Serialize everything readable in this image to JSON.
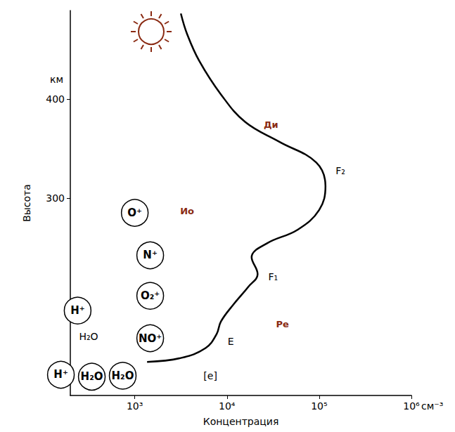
{
  "chart_data": {
    "type": "line",
    "xlabel": "Концентрация",
    "xunit": "см⁻³",
    "ylabel": "Высота",
    "yunit": "км",
    "log": "x",
    "grid": false,
    "xlim": [
      200,
      1000000
    ],
    "xticks": [
      {
        "value": 1000,
        "label": "10³"
      },
      {
        "value": 10000,
        "label": "10⁴"
      },
      {
        "value": 100000,
        "label": "10⁵"
      },
      {
        "value": 1000000,
        "label": "10⁶"
      }
    ],
    "ylim": [
      100,
      490
    ],
    "yticks": [
      300,
      400
    ],
    "series": [
      {
        "color": "#000000",
        "x": [
          1360,
          3160,
          5860,
          7700,
          8600,
          11700,
          17000,
          21500,
          18500,
          27000,
          58500,
          100000,
          117000,
          93000,
          37000,
          15800,
          8600,
          5000,
          3700,
          3160
        ],
        "values": [
          134,
          138,
          148,
          162,
          175,
          192,
          210,
          223,
          240,
          254,
          268,
          288,
          312,
          336,
          357,
          377,
          405,
          439,
          466,
          487
        ]
      }
    ],
    "ions": [
      {
        "text": "O⁺",
        "x": 1000,
        "y": 285
      },
      {
        "text": "N⁺",
        "x": 1470,
        "y": 242
      },
      {
        "text": "O₂⁺",
        "x": 1470,
        "y": 201
      },
      {
        "text": "NO⁺",
        "x": 1470,
        "y": 158
      },
      {
        "text": "H⁺",
        "x": 240,
        "y": 186
      },
      {
        "text": "H⁺",
        "x": 158,
        "y": 121
      },
      {
        "text": "H₂O",
        "x": 342,
        "y": 119
      },
      {
        "text": "H₂O",
        "x": 740,
        "y": 120
      }
    ],
    "annotations": [
      {
        "text": "E",
        "x": 11000,
        "y": 155
      },
      {
        "text": "F₁",
        "x": 31600,
        "y": 220
      },
      {
        "text": "F₂",
        "x": 170000,
        "y": 328
      },
      {
        "text": "[e]",
        "x": 6600,
        "y": 120
      },
      {
        "text": "H₂O",
        "x": 316,
        "y": 160
      }
    ],
    "names": [
      {
        "text": "Ди",
        "x": 30000,
        "y": 374
      },
      {
        "text": "Ио",
        "x": 3700,
        "y": 287
      },
      {
        "text": "Ре",
        "x": 40000,
        "y": 172
      }
    ]
  }
}
